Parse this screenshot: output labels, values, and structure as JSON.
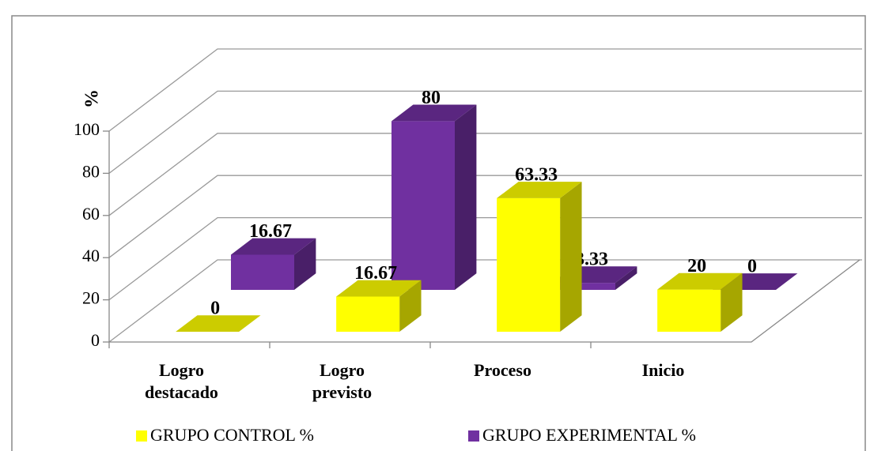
{
  "chart_data": {
    "type": "bar3d",
    "y_axis_label": "%",
    "categories": [
      "Logro destacado",
      "Logro previsto",
      "Proceso",
      "Inicio"
    ],
    "series": [
      {
        "name": "GRUPO CONTROL %",
        "color": "#ffff00",
        "values": [
          0,
          16.67,
          63.33,
          20
        ]
      },
      {
        "name": "GRUPO EXPERIMENTAL %",
        "color": "#7030a0",
        "values": [
          16.67,
          80,
          3.33,
          0
        ]
      }
    ],
    "ylim": [
      0,
      100
    ],
    "yticks": [
      0,
      20,
      40,
      60,
      80,
      100
    ],
    "grid": true,
    "legend": "bottom"
  }
}
